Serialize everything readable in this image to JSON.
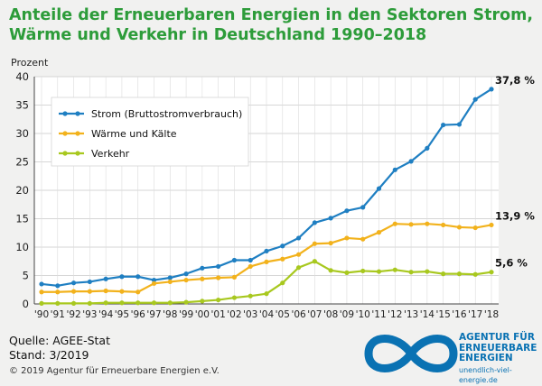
{
  "title_line1": "Anteile der Erneuerbaren Energien in den Sektoren Strom,",
  "title_line2": "Wärme und Verkehr in Deutschland 1990–2018",
  "source": "Quelle: AGEE-Stat",
  "stand": "Stand: 3/2019",
  "copyright": "© 2019 Agentur für Erneuerbare Energien e.V.",
  "logo": {
    "line1": "AGENTUR FÜR",
    "line2": "ERNEUERBARE",
    "line3": "ENERGIEN",
    "url": "unendlich-viel-energie.de",
    "icon": "infinity-logo-icon"
  },
  "colors": {
    "title": "#2d9c3a",
    "strom": "#1f7fc2",
    "waerme": "#f2b21c",
    "verkehr": "#a8c81f",
    "logo": "#0a72b3"
  },
  "chart_data": {
    "type": "line",
    "ylabel": "Prozent",
    "ylim": [
      0,
      40
    ],
    "yticks": [
      0,
      5,
      10,
      15,
      20,
      25,
      30,
      35,
      40
    ],
    "grid": true,
    "legend_position": "top-left",
    "categories": [
      "'90",
      "'91",
      "'92",
      "'93",
      "'94",
      "'95",
      "'96",
      "'97",
      "'98",
      "'99",
      "'00",
      "'01",
      "'02",
      "'03",
      "'04",
      "'05",
      "'06",
      "'07",
      "'08",
      "'09",
      "'10",
      "'11",
      "'12",
      "'13",
      "'14",
      "'15",
      "'16",
      "'17",
      "'18"
    ],
    "series": [
      {
        "name": "Strom (Bruttostromverbrauch)",
        "color": "#1f7fc2",
        "values": [
          3.5,
          3.2,
          3.7,
          3.9,
          4.4,
          4.8,
          4.8,
          4.2,
          4.6,
          5.3,
          6.3,
          6.6,
          7.7,
          7.7,
          9.3,
          10.2,
          11.6,
          14.3,
          15.1,
          16.4,
          17.0,
          20.3,
          23.6,
          25.1,
          27.4,
          31.5,
          31.6,
          36.0,
          37.8
        ],
        "end_label": "37,8 %"
      },
      {
        "name": "Wärme und Kälte",
        "color": "#f2b21c",
        "values": [
          2.1,
          2.1,
          2.2,
          2.2,
          2.3,
          2.2,
          2.1,
          3.6,
          3.9,
          4.2,
          4.4,
          4.6,
          4.7,
          6.6,
          7.4,
          7.9,
          8.7,
          10.6,
          10.7,
          11.6,
          11.4,
          12.6,
          14.1,
          14.0,
          14.1,
          13.9,
          13.5,
          13.4,
          13.9
        ],
        "end_label": "13,9 %"
      },
      {
        "name": "Verkehr",
        "color": "#a8c81f",
        "values": [
          0.1,
          0.1,
          0.1,
          0.1,
          0.2,
          0.2,
          0.2,
          0.2,
          0.2,
          0.3,
          0.5,
          0.7,
          1.1,
          1.4,
          1.8,
          3.7,
          6.4,
          7.5,
          5.9,
          5.5,
          5.8,
          5.7,
          6.0,
          5.6,
          5.7,
          5.3,
          5.3,
          5.2,
          5.6
        ],
        "end_label": "5,6 %"
      }
    ]
  }
}
